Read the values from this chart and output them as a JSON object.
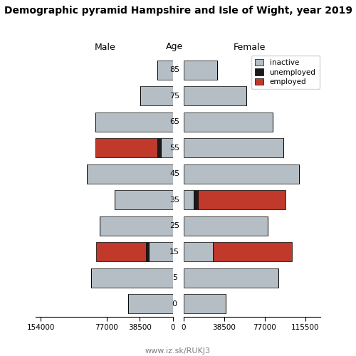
{
  "title": "Demographic pyramid Hampshire and Isle of Wight, year 2019",
  "age_labels": [
    0,
    5,
    15,
    25,
    35,
    45,
    55,
    65,
    75,
    85
  ],
  "male": {
    "inactive": [
      52000,
      95000,
      28000,
      85000,
      68000,
      100000,
      14000,
      90000,
      38000,
      18000
    ],
    "unemployed": [
      0,
      0,
      3500,
      0,
      0,
      0,
      3500,
      0,
      0,
      0
    ],
    "employed": [
      0,
      0,
      58000,
      0,
      0,
      0,
      73000,
      0,
      0,
      0
    ]
  },
  "female": {
    "inactive": [
      40000,
      90000,
      28000,
      80000,
      10000,
      110000,
      95000,
      85000,
      60000,
      32000
    ],
    "unemployed": [
      0,
      0,
      0,
      0,
      4000,
      0,
      0,
      0,
      0,
      0
    ],
    "employed": [
      0,
      0,
      75000,
      0,
      83000,
      0,
      0,
      0,
      0,
      0
    ]
  },
  "male_xlim": 160000,
  "female_xlim": 130000,
  "male_tick_vals": [
    -154000,
    -77000,
    -38500,
    0
  ],
  "male_tick_labels": [
    "154000",
    "77000",
    "38500",
    "0"
  ],
  "female_tick_vals": [
    0,
    38500,
    77000,
    115500
  ],
  "female_tick_labels": [
    "0",
    "38500",
    "77000",
    "115500"
  ],
  "colors": {
    "inactive": "#b5bec4",
    "unemployed": "#1a1a1a",
    "employed": "#c0392b"
  },
  "bar_height": 0.75,
  "bg_color": "#ffffff",
  "url": "www.iz.sk/RUKJ3"
}
